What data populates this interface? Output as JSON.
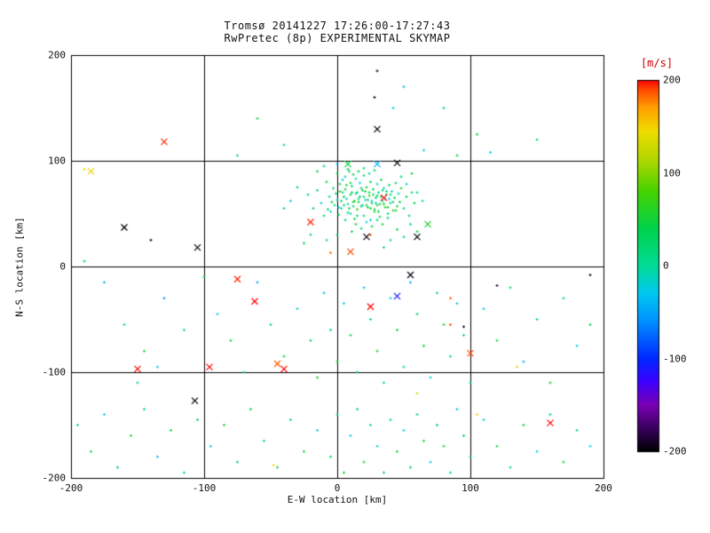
{
  "chart_data": {
    "type": "scatter",
    "title": "Tromsø 20141227 17:26:00-17:27:43",
    "subtitle": "RwPretec (8p) EXPERIMENTAL SKYMAP",
    "xlabel": "E-W location [km]",
    "ylabel": "N-S location [km]",
    "xlim": [
      -200,
      200
    ],
    "ylim": [
      -200,
      200
    ],
    "xticks": [
      -200,
      -100,
      0,
      100,
      200
    ],
    "yticks": [
      -200,
      -100,
      0,
      100,
      200
    ],
    "grid": true,
    "gridlines": [
      -100,
      0,
      100
    ],
    "colorbar": {
      "label": "[m/s]",
      "ticks": [
        200,
        100,
        0,
        -100,
        -200
      ],
      "min": -200,
      "max": 200,
      "stops": [
        [
          -200,
          "#000000"
        ],
        [
          -175,
          "#3a0060"
        ],
        [
          -150,
          "#7a00b4"
        ],
        [
          -125,
          "#3c00ff"
        ],
        [
          -100,
          "#0028ff"
        ],
        [
          -60,
          "#0090ff"
        ],
        [
          -30,
          "#00c8f0"
        ],
        [
          0,
          "#00dc96"
        ],
        [
          40,
          "#00d24a"
        ],
        [
          80,
          "#46d200"
        ],
        [
          115,
          "#b4d700"
        ],
        [
          145,
          "#f0dc00"
        ],
        [
          170,
          "#ffa000"
        ],
        [
          190,
          "#ff4600"
        ],
        [
          200,
          "#ff0000"
        ]
      ]
    },
    "dots": [
      [
        -22,
        68,
        20
      ],
      [
        -18,
        55,
        35
      ],
      [
        -15,
        72,
        10
      ],
      [
        -12,
        60,
        -15
      ],
      [
        -10,
        48,
        25
      ],
      [
        -8,
        80,
        40
      ],
      [
        -6,
        66,
        5
      ],
      [
        -5,
        52,
        -20
      ],
      [
        -3,
        74,
        30
      ],
      [
        -2,
        58,
        15
      ],
      [
        0,
        88,
        45
      ],
      [
        0,
        63,
        -10
      ],
      [
        1,
        49,
        20
      ],
      [
        2,
        71,
        60
      ],
      [
        3,
        55,
        8
      ],
      [
        4,
        82,
        -25
      ],
      [
        5,
        66,
        35
      ],
      [
        6,
        44,
        12
      ],
      [
        7,
        77,
        50
      ],
      [
        8,
        59,
        -5
      ],
      [
        9,
        90,
        25
      ],
      [
        10,
        68,
        40
      ],
      [
        10,
        50,
        -15
      ],
      [
        11,
        76,
        18
      ],
      [
        12,
        61,
        55
      ],
      [
        13,
        45,
        30
      ],
      [
        14,
        83,
        -8
      ],
      [
        15,
        70,
        22
      ],
      [
        15,
        54,
        65
      ],
      [
        16,
        64,
        10
      ],
      [
        17,
        79,
        -18
      ],
      [
        18,
        57,
        38
      ],
      [
        19,
        72,
        48
      ],
      [
        20,
        48,
        15
      ],
      [
        20,
        86,
        28
      ],
      [
        21,
        63,
        -12
      ],
      [
        22,
        75,
        52
      ],
      [
        23,
        56,
        20
      ],
      [
        24,
        67,
        70
      ],
      [
        25,
        80,
        35
      ],
      [
        25,
        44,
        -22
      ],
      [
        26,
        60,
        18
      ],
      [
        27,
        73,
        42
      ],
      [
        28,
        52,
        60
      ],
      [
        29,
        65,
        25
      ],
      [
        30,
        78,
        -15
      ],
      [
        30,
        58,
        48
      ],
      [
        31,
        70,
        12
      ],
      [
        32,
        47,
        30
      ],
      [
        33,
        82,
        55
      ],
      [
        34,
        62,
        20
      ],
      [
        35,
        74,
        -10
      ],
      [
        36,
        56,
        65
      ],
      [
        37,
        68,
        38
      ],
      [
        38,
        50,
        22
      ],
      [
        39,
        77,
        45
      ],
      [
        40,
        60,
        15
      ],
      [
        41,
        71,
        -20
      ],
      [
        42,
        53,
        58
      ],
      [
        43,
        65,
        32
      ],
      [
        44,
        79,
        25
      ],
      [
        45,
        57,
        48
      ],
      [
        46,
        69,
        -8
      ],
      [
        47,
        61,
        35
      ],
      [
        48,
        74,
        62
      ],
      [
        50,
        55,
        20
      ],
      [
        52,
        66,
        40
      ],
      [
        54,
        48,
        28
      ],
      [
        56,
        70,
        15
      ],
      [
        58,
        60,
        50
      ],
      [
        5,
        58,
        22
      ],
      [
        7,
        64,
        -18
      ],
      [
        9,
        55,
        40
      ],
      [
        11,
        70,
        28
      ],
      [
        13,
        62,
        55
      ],
      [
        15,
        48,
        15
      ],
      [
        17,
        66,
        35
      ],
      [
        19,
        58,
        -12
      ],
      [
        21,
        71,
        48
      ],
      [
        23,
        63,
        25
      ],
      [
        25,
        55,
        60
      ],
      [
        27,
        68,
        18
      ],
      [
        29,
        60,
        -20
      ],
      [
        31,
        52,
        42
      ],
      [
        33,
        66,
        30
      ],
      [
        35,
        59,
        55
      ],
      [
        37,
        71,
        22
      ],
      [
        39,
        64,
        -15
      ],
      [
        6,
        73,
        38
      ],
      [
        8,
        51,
        28
      ],
      [
        10,
        79,
        45
      ],
      [
        12,
        57,
        20
      ],
      [
        14,
        69,
        -10
      ],
      [
        16,
        61,
        52
      ],
      [
        18,
        74,
        30
      ],
      [
        20,
        66,
        18
      ],
      [
        22,
        58,
        62
      ],
      [
        24,
        70,
        25
      ],
      [
        26,
        62,
        -18
      ],
      [
        28,
        54,
        40
      ],
      [
        30,
        67,
        32
      ],
      [
        32,
        59,
        58
      ],
      [
        34,
        72,
        20
      ],
      [
        36,
        64,
        -8
      ],
      [
        38,
        56,
        45
      ],
      [
        40,
        68,
        28
      ],
      [
        42,
        61,
        15
      ],
      [
        44,
        53,
        50
      ],
      [
        3,
        62,
        33
      ],
      [
        1,
        56,
        -25
      ],
      [
        -1,
        69,
        18
      ],
      [
        -4,
        61,
        42
      ],
      [
        -7,
        54,
        27
      ],
      [
        2,
        78,
        50
      ],
      [
        4,
        70,
        12
      ],
      [
        6,
        85,
        -15
      ],
      [
        8,
        92,
        35
      ],
      [
        12,
        87,
        25
      ],
      [
        16,
        90,
        40
      ],
      [
        20,
        93,
        18
      ],
      [
        24,
        88,
        -12
      ],
      [
        28,
        91,
        30
      ],
      [
        14,
        40,
        55
      ],
      [
        18,
        36,
        22
      ],
      [
        22,
        42,
        -18
      ],
      [
        26,
        38,
        45
      ],
      [
        30,
        44,
        28
      ],
      [
        34,
        40,
        60
      ],
      [
        38,
        46,
        20
      ],
      [
        11,
        33,
        35
      ],
      [
        -30,
        75,
        15
      ],
      [
        -35,
        62,
        -20
      ],
      [
        -40,
        55,
        30
      ],
      [
        48,
        85,
        22
      ],
      [
        52,
        78,
        -15
      ],
      [
        56,
        88,
        40
      ],
      [
        60,
        70,
        25
      ],
      [
        64,
        62,
        18
      ],
      [
        -15,
        90,
        35
      ],
      [
        -10,
        95,
        20
      ],
      [
        45,
        35,
        35
      ],
      [
        50,
        28,
        -12
      ],
      [
        55,
        40,
        25
      ],
      [
        60,
        33,
        45
      ],
      [
        40,
        25,
        18
      ],
      [
        35,
        18,
        30
      ],
      [
        -20,
        30,
        22
      ],
      [
        -25,
        22,
        40
      ],
      [
        -8,
        25,
        -15
      ],
      [
        0,
        30,
        28
      ],
      [
        -190,
        5,
        30
      ],
      [
        -175,
        -15,
        -40
      ],
      [
        -160,
        -55,
        20
      ],
      [
        -145,
        -80,
        45
      ],
      [
        -130,
        -30,
        -60
      ],
      [
        -115,
        -60,
        15
      ],
      [
        -100,
        -10,
        35
      ],
      [
        -90,
        -45,
        -25
      ],
      [
        -80,
        -70,
        50
      ],
      [
        -70,
        -100,
        10
      ],
      [
        -60,
        -15,
        -45
      ],
      [
        -50,
        -55,
        25
      ],
      [
        -40,
        -85,
        40
      ],
      [
        -30,
        -40,
        -15
      ],
      [
        -20,
        -70,
        30
      ],
      [
        -15,
        -105,
        55
      ],
      [
        -10,
        -25,
        -35
      ],
      [
        -5,
        -60,
        20
      ],
      [
        0,
        -90,
        45
      ],
      [
        5,
        -35,
        -20
      ],
      [
        10,
        -65,
        35
      ],
      [
        15,
        -100,
        15
      ],
      [
        20,
        -20,
        -40
      ],
      [
        25,
        -50,
        25
      ],
      [
        30,
        -80,
        50
      ],
      [
        35,
        -110,
        10
      ],
      [
        40,
        -30,
        -30
      ],
      [
        45,
        -60,
        40
      ],
      [
        50,
        -95,
        20
      ],
      [
        55,
        -15,
        -50
      ],
      [
        60,
        -45,
        30
      ],
      [
        65,
        -75,
        45
      ],
      [
        70,
        -105,
        -15
      ],
      [
        75,
        -25,
        25
      ],
      [
        80,
        -55,
        55
      ],
      [
        85,
        -85,
        15
      ],
      [
        90,
        -35,
        -35
      ],
      [
        95,
        -65,
        35
      ],
      [
        100,
        -110,
        20
      ],
      [
        110,
        -40,
        -25
      ],
      [
        120,
        -70,
        40
      ],
      [
        130,
        -20,
        30
      ],
      [
        140,
        -90,
        -45
      ],
      [
        150,
        -50,
        25
      ],
      [
        160,
        -110,
        50
      ],
      [
        170,
        -30,
        15
      ],
      [
        180,
        -75,
        -20
      ],
      [
        190,
        -55,
        35
      ],
      [
        -150,
        -110,
        25
      ],
      [
        -135,
        -95,
        -30
      ],
      [
        -195,
        -150,
        25
      ],
      [
        -185,
        -175,
        40
      ],
      [
        -175,
        -140,
        -15
      ],
      [
        -165,
        -190,
        30
      ],
      [
        -155,
        -160,
        50
      ],
      [
        -145,
        -135,
        20
      ],
      [
        -135,
        -180,
        -35
      ],
      [
        -125,
        -155,
        45
      ],
      [
        -115,
        -195,
        15
      ],
      [
        -105,
        -145,
        35
      ],
      [
        -95,
        -170,
        -20
      ],
      [
        -85,
        -150,
        55
      ],
      [
        -75,
        -185,
        25
      ],
      [
        -65,
        -135,
        40
      ],
      [
        -55,
        -165,
        -10
      ],
      [
        -45,
        -190,
        30
      ],
      [
        -35,
        -145,
        20
      ],
      [
        -25,
        -175,
        48
      ],
      [
        -15,
        -155,
        -25
      ],
      [
        -5,
        -180,
        35
      ],
      [
        0,
        -140,
        15
      ],
      [
        5,
        -195,
        42
      ],
      [
        10,
        -160,
        -30
      ],
      [
        15,
        -135,
        28
      ],
      [
        20,
        -185,
        50
      ],
      [
        25,
        -150,
        18
      ],
      [
        30,
        -170,
        -15
      ],
      [
        35,
        -195,
        38
      ],
      [
        40,
        -145,
        22
      ],
      [
        45,
        -175,
        45
      ],
      [
        50,
        -155,
        -20
      ],
      [
        55,
        -190,
        32
      ],
      [
        60,
        -140,
        12
      ],
      [
        65,
        -165,
        48
      ],
      [
        70,
        -185,
        -25
      ],
      [
        75,
        -150,
        28
      ],
      [
        80,
        -170,
        52
      ],
      [
        85,
        -195,
        18
      ],
      [
        90,
        -135,
        -35
      ],
      [
        95,
        -160,
        40
      ],
      [
        100,
        -180,
        25
      ],
      [
        110,
        -145,
        -15
      ],
      [
        120,
        -170,
        35
      ],
      [
        130,
        -190,
        20
      ],
      [
        140,
        -150,
        45
      ],
      [
        150,
        -175,
        -20
      ],
      [
        160,
        -140,
        30
      ],
      [
        170,
        -185,
        50
      ],
      [
        180,
        -155,
        15
      ],
      [
        190,
        -170,
        -30
      ],
      [
        30,
        185,
        -195
      ],
      [
        28,
        160,
        -200
      ],
      [
        50,
        170,
        -40
      ],
      [
        42,
        150,
        -30
      ],
      [
        -60,
        140,
        30
      ],
      [
        80,
        150,
        25
      ],
      [
        105,
        125,
        40
      ],
      [
        150,
        120,
        35
      ],
      [
        -40,
        115,
        20
      ],
      [
        65,
        110,
        -15
      ],
      [
        90,
        105,
        45
      ],
      [
        115,
        108,
        -30
      ],
      [
        0,
        97,
        -50
      ],
      [
        -75,
        105,
        15
      ],
      [
        -140,
        25,
        -200
      ],
      [
        190,
        -8,
        -200
      ],
      [
        120,
        -18,
        -190
      ],
      [
        95,
        -57,
        -195
      ],
      [
        85,
        -30,
        185
      ],
      [
        85,
        -55,
        190
      ],
      [
        25,
        30,
        185
      ],
      [
        -5,
        13,
        180
      ],
      [
        -190,
        92,
        140
      ],
      [
        60,
        -120,
        135
      ],
      [
        105,
        -140,
        145
      ],
      [
        -48,
        -188,
        140
      ],
      [
        135,
        -95,
        130
      ]
    ],
    "crosses": [
      [
        -130,
        118,
        195
      ],
      [
        -150,
        -97,
        200
      ],
      [
        -96,
        -95,
        200
      ],
      [
        -75,
        -12,
        195
      ],
      [
        -62,
        -33,
        200
      ],
      [
        -45,
        -92,
        185
      ],
      [
        25,
        -38,
        200
      ],
      [
        100,
        -82,
        190
      ],
      [
        160,
        -148,
        200
      ],
      [
        35,
        65,
        200
      ],
      [
        -20,
        42,
        195
      ],
      [
        10,
        14,
        190
      ],
      [
        -40,
        -97,
        200
      ],
      [
        -185,
        90,
        150
      ],
      [
        -160,
        37,
        -200
      ],
      [
        -105,
        18,
        -200
      ],
      [
        -107,
        -127,
        -200
      ],
      [
        45,
        98,
        -200
      ],
      [
        60,
        28,
        -200
      ],
      [
        22,
        28,
        -195
      ],
      [
        30,
        130,
        -200
      ],
      [
        55,
        -8,
        -195
      ],
      [
        45,
        -28,
        -110
      ],
      [
        30,
        97,
        -40
      ],
      [
        8,
        97,
        45
      ],
      [
        68,
        40,
        55
      ]
    ]
  }
}
